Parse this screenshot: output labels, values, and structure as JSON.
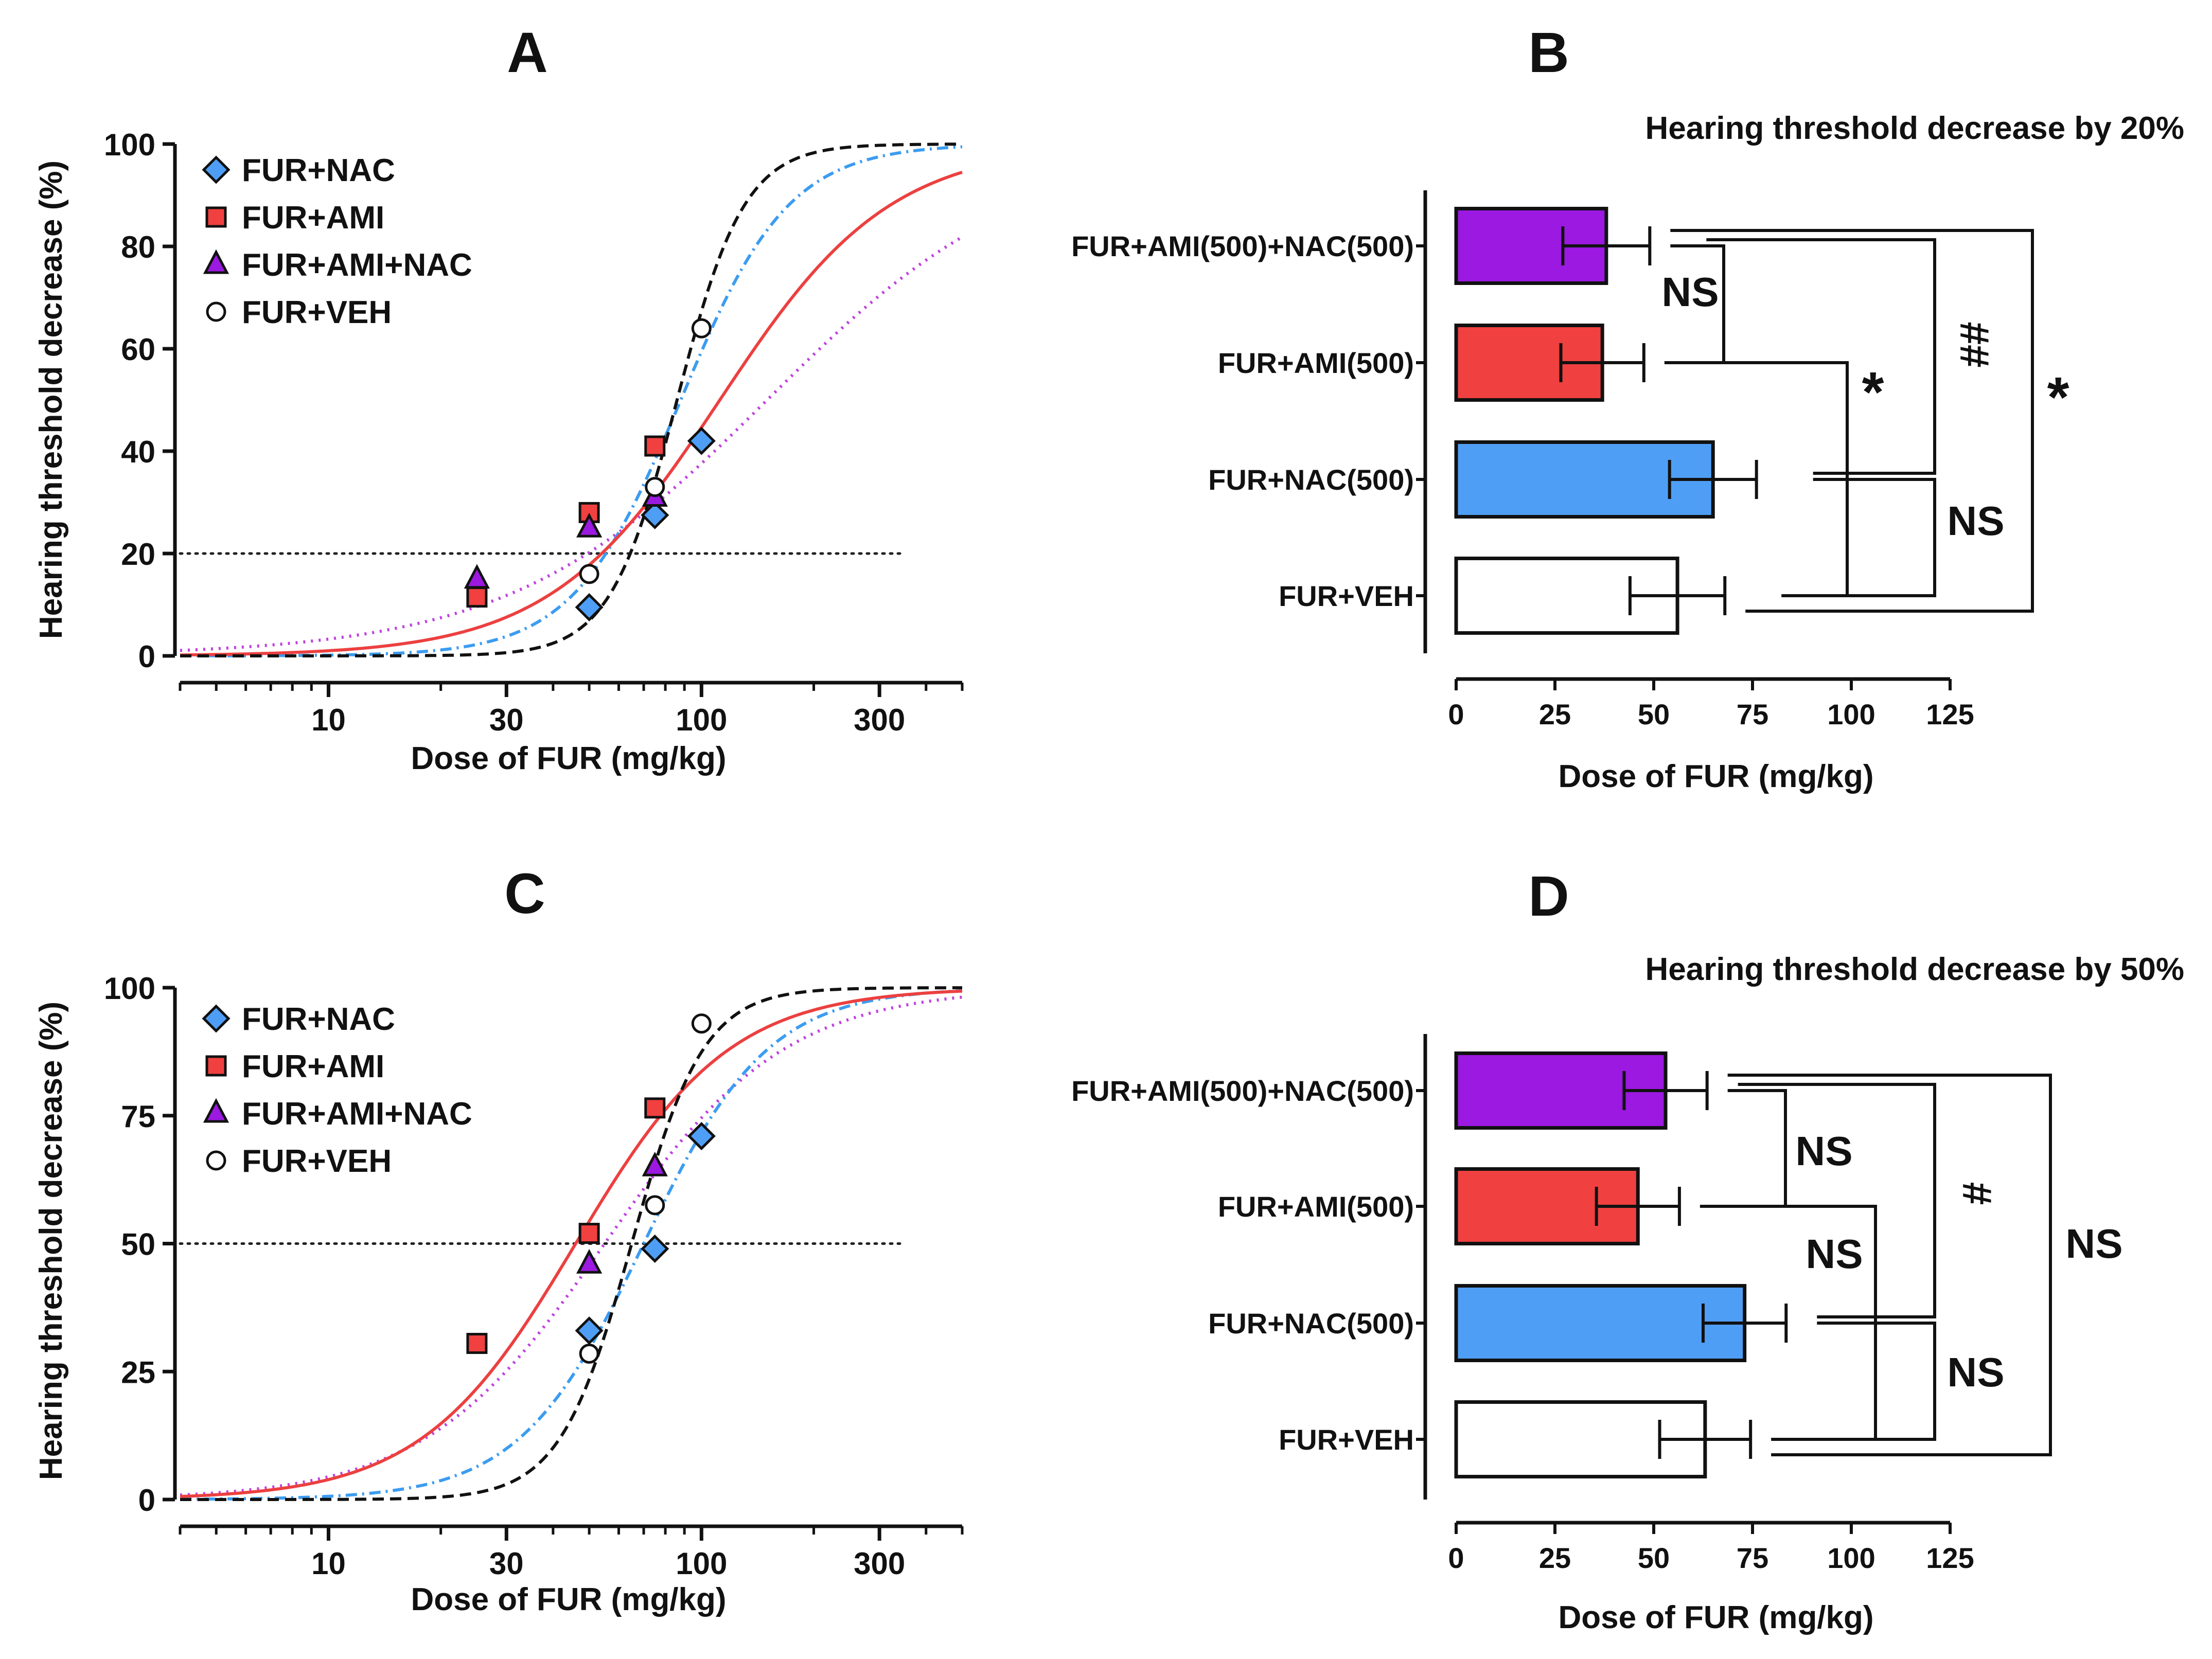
{
  "colors": {
    "nac": "#4f9ef5",
    "ami": "#f04040",
    "ami_nac": "#9b19e0",
    "veh": "#ffffff",
    "nac_curve": "#3c9cf0",
    "ami_curve": "#ec4040",
    "ami_nac_curve": "#c040e0",
    "veh_curve": "#111111",
    "axis": "#111111"
  },
  "chart_data": [
    {
      "panel": "A",
      "type": "scatter",
      "subtype": "dose-response (log x axis)",
      "title": "A",
      "xlabel": "Dose of FUR (mg/kg)",
      "ylabel": "Hearing threshold decrease (%)",
      "x_scale": "log",
      "xlim": [
        4,
        500
      ],
      "ylim": [
        0,
        100
      ],
      "x_ticks": [
        10,
        30,
        100,
        300
      ],
      "x_tick_labels": [
        "10",
        "30",
        "100",
        "300"
      ],
      "y_ticks": [
        0,
        20,
        40,
        60,
        80,
        100
      ],
      "y_tick_labels": [
        "0",
        "20",
        "40",
        "60",
        "80",
        "100"
      ],
      "reference_line": {
        "y": 20,
        "x_end": 350,
        "style": "dotted"
      },
      "legend": {
        "placement": "top-left",
        "entries": [
          "FUR+NAC",
          "FUR+AMI",
          "FUR+AMI+NAC",
          "FUR+VEH"
        ]
      },
      "series": [
        {
          "name": "FUR+NAC",
          "marker": "diamond",
          "color_key": "nac",
          "points": [
            [
              50,
              9.5
            ],
            [
              75,
              27.5
            ],
            [
              100,
              42
            ]
          ],
          "curve": {
            "ec50": 88,
            "hill": 3.0,
            "style": "dash-dot",
            "color_key": "nac_curve"
          }
        },
        {
          "name": "FUR+AMI",
          "marker": "square",
          "color_key": "ami",
          "points": [
            [
              25,
              11.5
            ],
            [
              50,
              28
            ],
            [
              75,
              41
            ]
          ],
          "curve": {
            "ec50": 112,
            "hill": 1.9,
            "style": "solid",
            "color_key": "ami_curve"
          }
        },
        {
          "name": "FUR+AMI+NAC",
          "marker": "triangle",
          "color_key": "ami_nac",
          "points": [
            [
              25,
              15
            ],
            [
              50,
              25
            ],
            [
              75,
              31
            ]
          ],
          "curve": {
            "ec50": 150,
            "hill": 1.25,
            "style": "dotted",
            "color_key": "ami_nac_curve"
          }
        },
        {
          "name": "FUR+VEH",
          "marker": "circle",
          "color_key": "veh",
          "points": [
            [
              50,
              16
            ],
            [
              75,
              33
            ],
            [
              100,
              64
            ]
          ],
          "curve": {
            "ec50": 86,
            "hill": 4.8,
            "style": "dashed",
            "color_key": "veh_curve"
          }
        }
      ]
    },
    {
      "panel": "B",
      "type": "bar",
      "orientation": "horizontal",
      "title": "B",
      "subtitle": "Hearing threshold decrease by 20%",
      "xlabel": "Dose of FUR (mg/kg)",
      "xlim": [
        0,
        125
      ],
      "x_ticks": [
        0,
        25,
        50,
        75,
        100,
        125
      ],
      "x_tick_labels": [
        "0",
        "25",
        "50",
        "75",
        "100",
        "125"
      ],
      "categories": [
        "FUR+AMI(500)+NAC(500)",
        "FUR+AMI(500)",
        "FUR+NAC(500)",
        "FUR+VEH"
      ],
      "values": [
        38,
        37,
        65,
        56
      ],
      "errors": [
        11,
        10.5,
        11,
        12
      ],
      "bar_colors": [
        "ami_nac",
        "ami",
        "nac",
        "veh"
      ],
      "annotations": [
        {
          "pair": [
            0,
            1
          ],
          "text": "NS"
        },
        {
          "pair": [
            2,
            3
          ],
          "text": "NS"
        },
        {
          "pair": [
            1,
            3
          ],
          "text": "*"
        },
        {
          "pair": [
            0,
            2
          ],
          "text": "##"
        },
        {
          "pair": [
            0,
            3
          ],
          "text": "*"
        }
      ]
    },
    {
      "panel": "C",
      "type": "scatter",
      "subtype": "dose-response (log x axis)",
      "title": "C",
      "xlabel": "Dose of FUR (mg/kg)",
      "ylabel": "Hearing threshold decrease (%)",
      "x_scale": "log",
      "xlim": [
        4,
        500
      ],
      "ylim": [
        0,
        100
      ],
      "x_ticks": [
        10,
        30,
        100,
        300
      ],
      "x_tick_labels": [
        "10",
        "30",
        "100",
        "300"
      ],
      "y_ticks": [
        0,
        25,
        50,
        75,
        100
      ],
      "y_tick_labels": [
        "0",
        "25",
        "50",
        "75",
        "100"
      ],
      "reference_line": {
        "y": 50,
        "x_end": 350,
        "style": "dotted"
      },
      "legend": {
        "placement": "top-left",
        "entries": [
          "FUR+NAC",
          "FUR+AMI",
          "FUR+AMI+NAC",
          "FUR+VEH"
        ]
      },
      "series": [
        {
          "name": "FUR+NAC",
          "marker": "diamond",
          "color_key": "nac",
          "points": [
            [
              50,
              33
            ],
            [
              75,
              49
            ],
            [
              100,
              71
            ]
          ],
          "curve": {
            "ec50": 70,
            "hill": 2.6,
            "style": "dash-dot",
            "color_key": "nac_curve"
          }
        },
        {
          "name": "FUR+AMI",
          "marker": "square",
          "color_key": "ami",
          "points": [
            [
              25,
              30.5
            ],
            [
              50,
              52
            ],
            [
              75,
              76.5
            ]
          ],
          "curve": {
            "ec50": 46,
            "hill": 2.1,
            "style": "solid",
            "color_key": "ami_curve"
          }
        },
        {
          "name": "FUR+AMI+NAC",
          "marker": "triangle",
          "color_key": "ami_nac",
          "points": [
            [
              50,
              46
            ],
            [
              75,
              65
            ]
          ],
          "curve": {
            "ec50": 55,
            "hill": 1.8,
            "style": "dotted",
            "color_key": "ami_nac_curve"
          }
        },
        {
          "name": "FUR+VEH",
          "marker": "circle",
          "color_key": "veh",
          "points": [
            [
              50,
              28.5
            ],
            [
              75,
              57.5
            ],
            [
              100,
              93
            ]
          ],
          "curve": {
            "ec50": 65,
            "hill": 4.5,
            "style": "dashed",
            "color_key": "veh_curve"
          }
        }
      ]
    },
    {
      "panel": "D",
      "type": "bar",
      "orientation": "horizontal",
      "title": "D",
      "subtitle": "Hearing threshold decrease by 50%",
      "xlabel": "Dose of FUR (mg/kg)",
      "xlim": [
        0,
        125
      ],
      "x_ticks": [
        0,
        25,
        50,
        75,
        100,
        125
      ],
      "x_tick_labels": [
        "0",
        "25",
        "50",
        "75",
        "100",
        "125"
      ],
      "categories": [
        "FUR+AMI(500)+NAC(500)",
        "FUR+AMI(500)",
        "FUR+NAC(500)",
        "FUR+VEH"
      ],
      "values": [
        53,
        46,
        73,
        63
      ],
      "errors": [
        10.5,
        10.5,
        10.5,
        11.5
      ],
      "bar_colors": [
        "ami_nac",
        "ami",
        "nac",
        "veh"
      ],
      "annotations": [
        {
          "pair": [
            0,
            1
          ],
          "text": "NS"
        },
        {
          "pair": [
            1,
            3
          ],
          "text": "NS"
        },
        {
          "pair": [
            2,
            3
          ],
          "text": "NS"
        },
        {
          "pair": [
            0,
            2
          ],
          "text": "#"
        },
        {
          "pair": [
            0,
            3
          ],
          "text": "NS"
        }
      ]
    }
  ]
}
